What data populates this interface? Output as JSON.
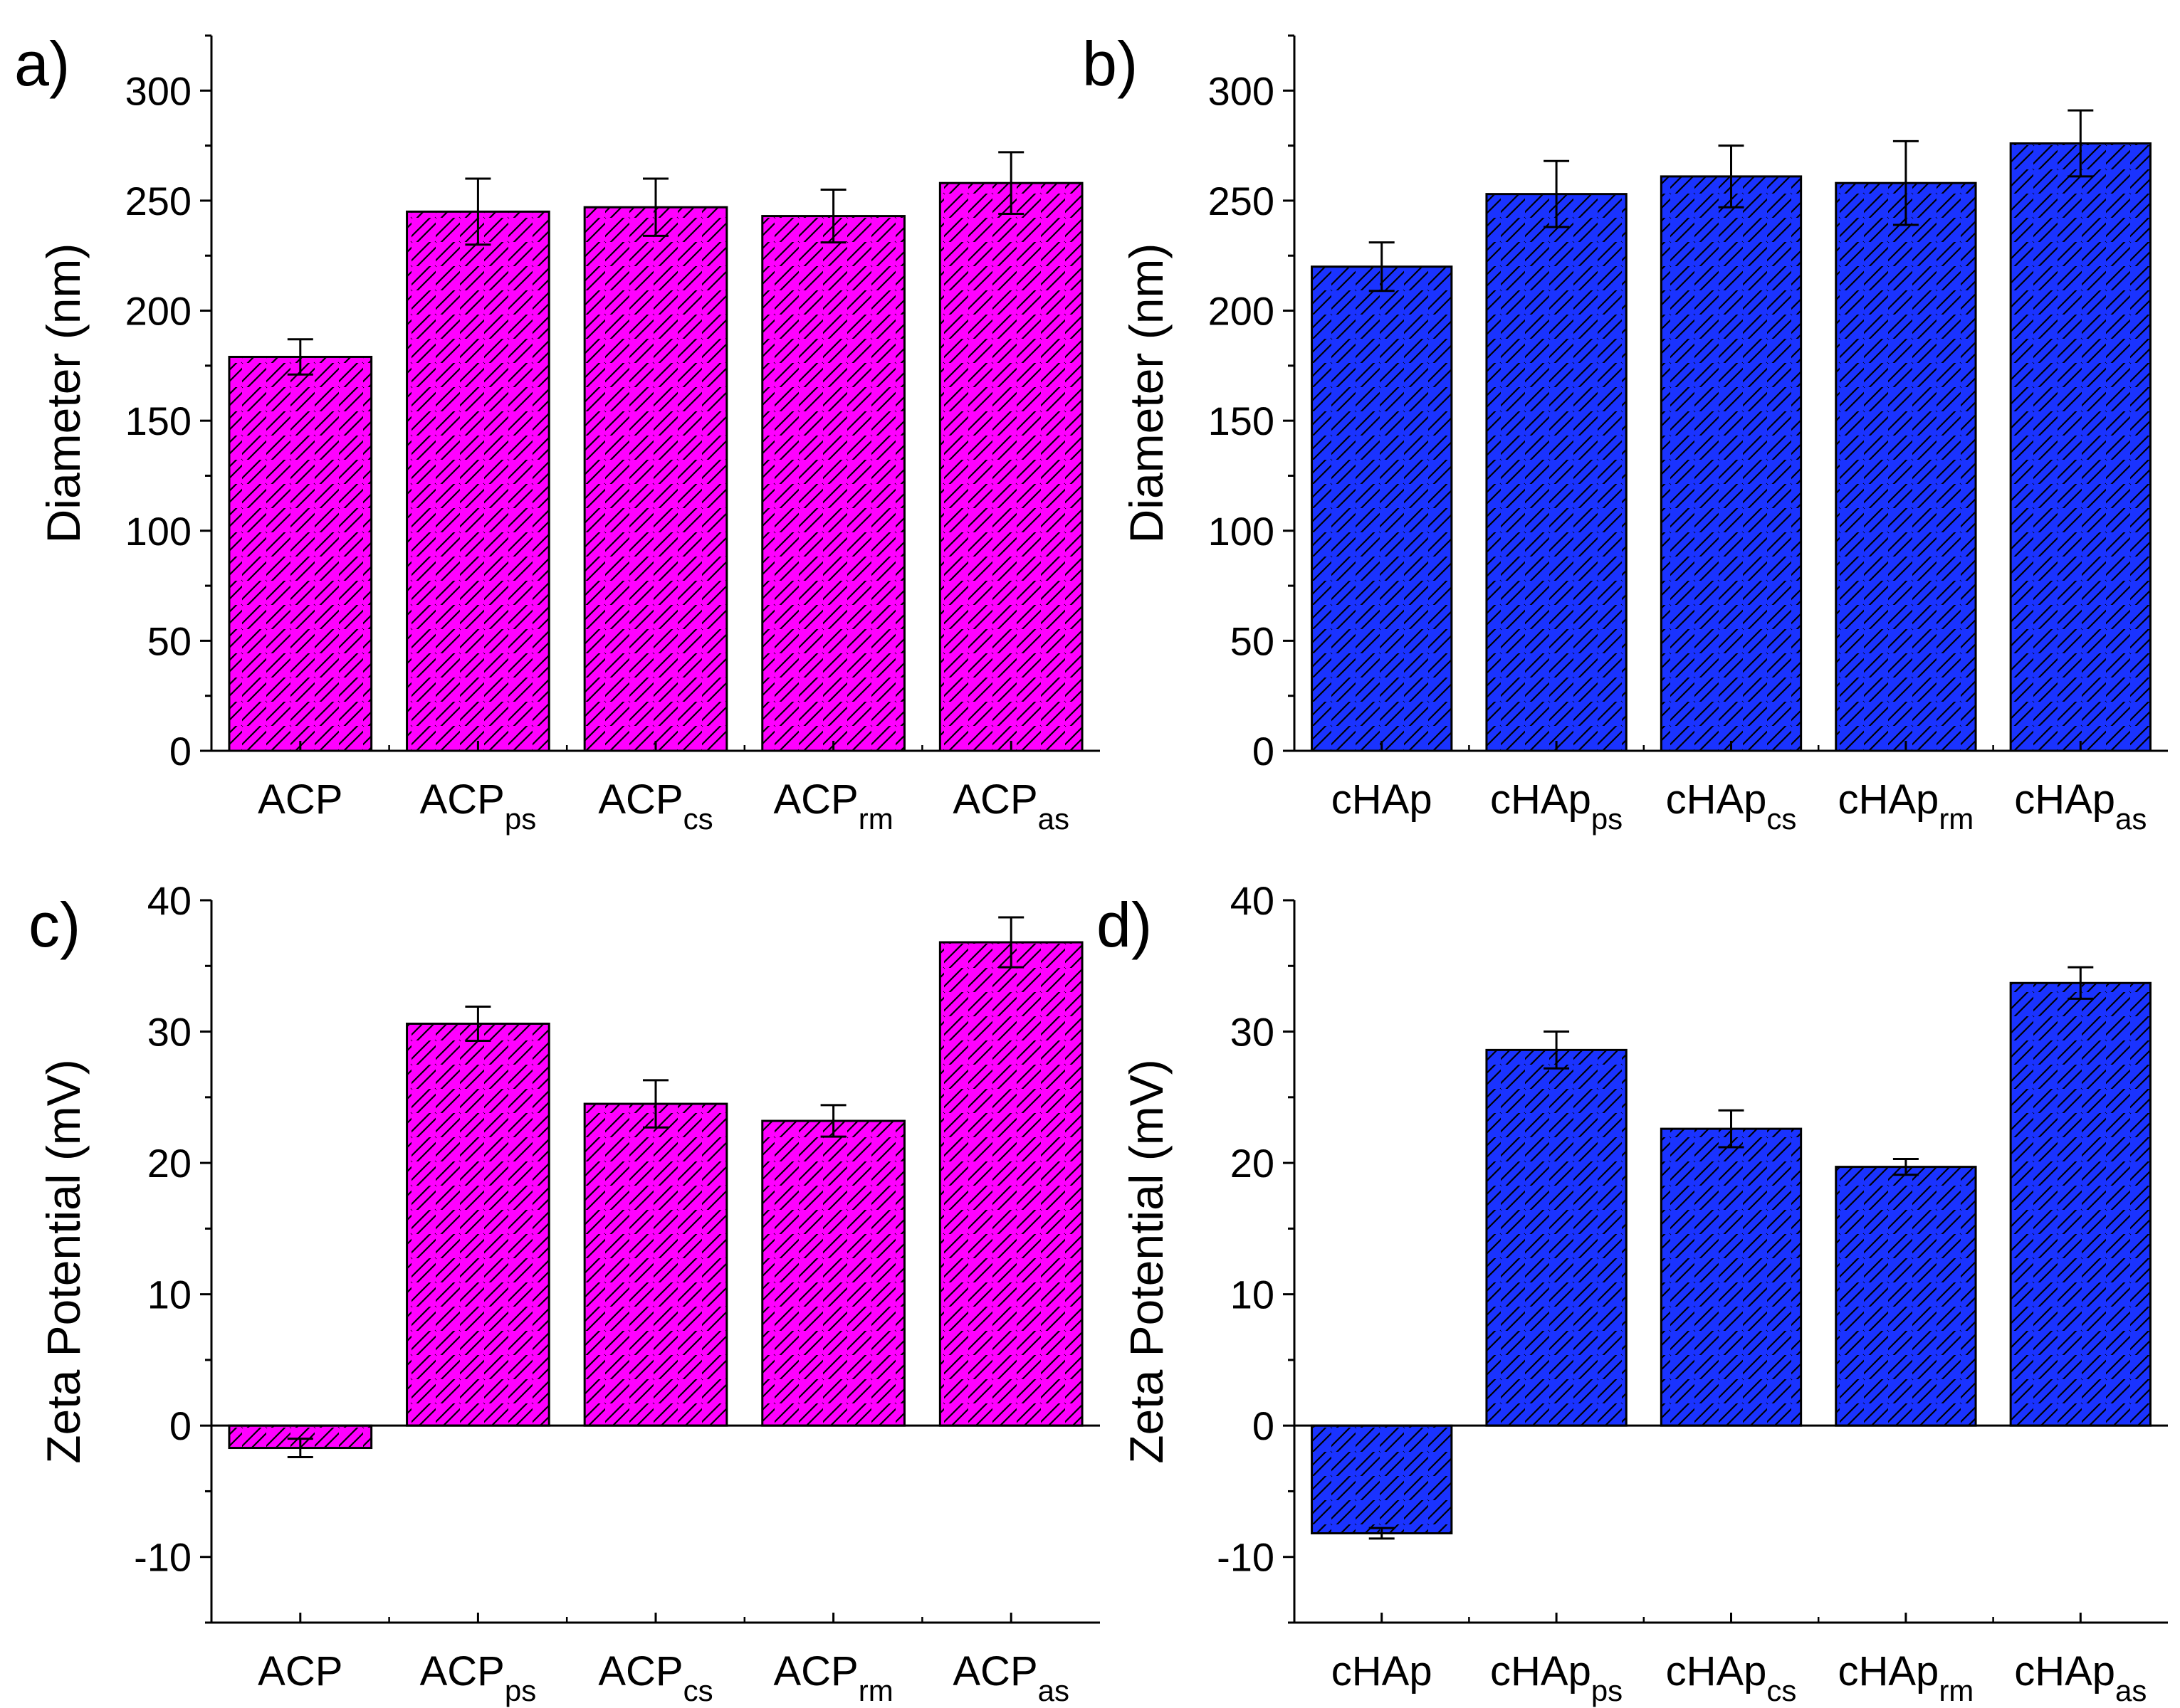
{
  "figure": {
    "panels": [
      "a",
      "b",
      "c",
      "d"
    ]
  },
  "chart_data": [
    {
      "id": "a",
      "panel_label": "a)",
      "type": "bar",
      "title": "",
      "ylabel": "Diameter (nm)",
      "xlabel": "",
      "ylim": [
        0,
        325
      ],
      "yticks": [
        0,
        50,
        100,
        150,
        200,
        250,
        300
      ],
      "grid": false,
      "categories": [
        {
          "base": "ACP",
          "sub": ""
        },
        {
          "base": "ACP",
          "sub": "ps"
        },
        {
          "base": "ACP",
          "sub": "cs"
        },
        {
          "base": "ACP",
          "sub": "rm"
        },
        {
          "base": "ACP",
          "sub": "as"
        }
      ],
      "values": [
        179,
        245,
        247,
        243,
        258
      ],
      "errors": [
        8,
        15,
        13,
        12,
        14
      ],
      "color": "#ff00ff",
      "hatch": "diagonal"
    },
    {
      "id": "b",
      "panel_label": "b)",
      "type": "bar",
      "title": "",
      "ylabel": "Diameter (nm)",
      "xlabel": "",
      "ylim": [
        0,
        325
      ],
      "yticks": [
        0,
        50,
        100,
        150,
        200,
        250,
        300
      ],
      "grid": false,
      "categories": [
        {
          "base": "cHAp",
          "sub": ""
        },
        {
          "base": "cHAp",
          "sub": "ps"
        },
        {
          "base": "cHAp",
          "sub": "cs"
        },
        {
          "base": "cHAp",
          "sub": "rm"
        },
        {
          "base": "cHAp",
          "sub": "as"
        }
      ],
      "values": [
        220,
        253,
        261,
        258,
        276
      ],
      "errors": [
        11,
        15,
        14,
        19,
        15
      ],
      "color": "#1a33ff",
      "hatch": "diagonal"
    },
    {
      "id": "c",
      "panel_label": "c)",
      "type": "bar",
      "title": "",
      "ylabel": "Zeta Potential (mV)",
      "xlabel": "",
      "ylim": [
        -15,
        40
      ],
      "yticks": [
        -10,
        0,
        10,
        20,
        30,
        40
      ],
      "grid": false,
      "categories": [
        {
          "base": "ACP",
          "sub": ""
        },
        {
          "base": "ACP",
          "sub": "ps"
        },
        {
          "base": "ACP",
          "sub": "cs"
        },
        {
          "base": "ACP",
          "sub": "rm"
        },
        {
          "base": "ACP",
          "sub": "as"
        }
      ],
      "values": [
        -1.7,
        30.6,
        24.5,
        23.2,
        36.8
      ],
      "errors": [
        0.7,
        1.3,
        1.8,
        1.2,
        1.9
      ],
      "color": "#ff00ff",
      "hatch": "diagonal"
    },
    {
      "id": "d",
      "panel_label": "d)",
      "type": "bar",
      "title": "",
      "ylabel": "Zeta Potential (mV)",
      "xlabel": "",
      "ylim": [
        -15,
        40
      ],
      "yticks": [
        -10,
        0,
        10,
        20,
        30,
        40
      ],
      "grid": false,
      "categories": [
        {
          "base": "cHAp",
          "sub": ""
        },
        {
          "base": "cHAp",
          "sub": "ps"
        },
        {
          "base": "cHAp",
          "sub": "cs"
        },
        {
          "base": "cHAp",
          "sub": "rm"
        },
        {
          "base": "cHAp",
          "sub": "as"
        }
      ],
      "values": [
        -8.2,
        28.6,
        22.6,
        19.7,
        33.7
      ],
      "errors": [
        0.4,
        1.4,
        1.4,
        0.6,
        1.2
      ],
      "color": "#1a33ff",
      "hatch": "diagonal"
    }
  ]
}
